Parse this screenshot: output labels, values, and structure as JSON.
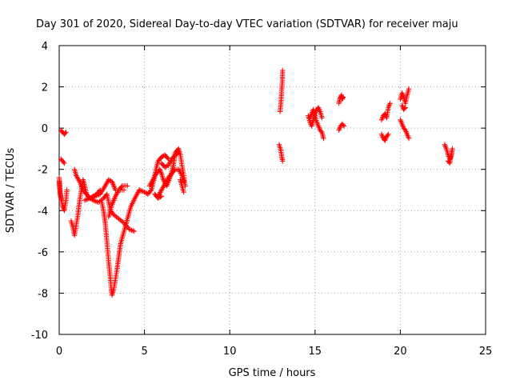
{
  "chart_data": {
    "type": "scatter",
    "title": "Day 301 of 2020, Sidereal Day-to-day VTEC variation (SDTVAR) for receiver maju",
    "xlabel": "GPS time / hours",
    "ylabel": "SDTVAR / TECUs",
    "xlim": [
      0,
      25
    ],
    "ylim": [
      -10,
      4
    ],
    "xticks": [
      0,
      5,
      10,
      15,
      20,
      25
    ],
    "yticks": [
      -10,
      -8,
      -6,
      -4,
      -2,
      0,
      2,
      4
    ],
    "grid": true,
    "marker": "+",
    "series": [
      {
        "name": "SDTVAR",
        "color": "#ff0000",
        "tracks": [
          [
            [
              0.0,
              -2.4
            ],
            [
              0.05,
              -3.0
            ],
            [
              0.1,
              -3.4
            ],
            [
              0.2,
              -3.8
            ],
            [
              0.3,
              -4.0
            ],
            [
              0.4,
              -3.5
            ],
            [
              0.45,
              -3.0
            ]
          ],
          [
            [
              0.0,
              -2.6
            ],
            [
              0.05,
              -3.2
            ],
            [
              0.15,
              -3.5
            ]
          ],
          [
            [
              0.1,
              -0.1
            ],
            [
              0.2,
              -0.2
            ],
            [
              0.3,
              -0.3
            ],
            [
              0.4,
              -0.2
            ]
          ],
          [
            [
              0.1,
              -1.5
            ],
            [
              0.2,
              -1.6
            ],
            [
              0.3,
              -1.7
            ]
          ],
          [
            [
              0.7,
              -4.5
            ],
            [
              0.8,
              -4.8
            ],
            [
              0.9,
              -5.2
            ],
            [
              1.0,
              -4.7
            ],
            [
              1.1,
              -4.2
            ],
            [
              1.2,
              -3.5
            ],
            [
              1.3,
              -3.0
            ],
            [
              1.4,
              -2.5
            ],
            [
              1.5,
              -2.8
            ],
            [
              1.6,
              -3.2
            ],
            [
              1.8,
              -3.4
            ],
            [
              2.0,
              -3.5
            ],
            [
              2.3,
              -3.6
            ],
            [
              2.6,
              -3.4
            ],
            [
              2.8,
              -3.2
            ],
            [
              3.0,
              -4.0
            ],
            [
              3.2,
              -4.2
            ],
            [
              3.5,
              -4.4
            ],
            [
              3.8,
              -4.6
            ],
            [
              4.1,
              -4.9
            ],
            [
              4.4,
              -5.0
            ]
          ],
          [
            [
              0.9,
              -2.0
            ],
            [
              1.0,
              -2.3
            ],
            [
              1.2,
              -2.6
            ],
            [
              1.4,
              -3.0
            ],
            [
              1.6,
              -3.2
            ],
            [
              1.8,
              -3.4
            ],
            [
              2.0,
              -3.3
            ],
            [
              2.2,
              -3.2
            ],
            [
              2.4,
              -3.0
            ]
          ],
          [
            [
              1.5,
              -3.5
            ],
            [
              1.8,
              -3.4
            ],
            [
              2.1,
              -3.3
            ],
            [
              2.4,
              -3.2
            ],
            [
              2.7,
              -2.8
            ],
            [
              2.9,
              -2.5
            ],
            [
              3.1,
              -2.6
            ],
            [
              3.3,
              -3.0
            ]
          ],
          [
            [
              2.5,
              -3.6
            ],
            [
              2.6,
              -4.0
            ],
            [
              2.7,
              -4.6
            ],
            [
              2.8,
              -5.5
            ],
            [
              2.9,
              -6.5
            ],
            [
              3.0,
              -7.3
            ],
            [
              3.05,
              -7.8
            ],
            [
              3.1,
              -8.1
            ],
            [
              3.2,
              -7.8
            ],
            [
              3.3,
              -7.3
            ],
            [
              3.4,
              -6.8
            ],
            [
              3.5,
              -6.2
            ],
            [
              3.6,
              -5.6
            ],
            [
              3.8,
              -5.0
            ],
            [
              4.0,
              -4.4
            ],
            [
              4.2,
              -3.8
            ],
            [
              4.5,
              -3.3
            ],
            [
              4.7,
              -3.0
            ]
          ],
          [
            [
              2.9,
              -4.3
            ],
            [
              3.0,
              -4.0
            ],
            [
              3.1,
              -3.7
            ],
            [
              3.3,
              -3.3
            ],
            [
              3.5,
              -3.0
            ],
            [
              3.8,
              -3.0
            ]
          ],
          [
            [
              3.5,
              -3.0
            ],
            [
              3.7,
              -2.8
            ],
            [
              4.0,
              -2.8
            ]
          ],
          [
            [
              4.7,
              -3.0
            ],
            [
              5.0,
              -3.1
            ],
            [
              5.2,
              -3.2
            ],
            [
              5.4,
              -3.0
            ],
            [
              5.5,
              -2.7
            ],
            [
              5.6,
              -2.3
            ],
            [
              5.7,
              -1.9
            ],
            [
              5.8,
              -1.6
            ],
            [
              6.0,
              -1.4
            ],
            [
              6.2,
              -1.3
            ],
            [
              6.4,
              -1.5
            ]
          ],
          [
            [
              5.3,
              -2.8
            ],
            [
              5.5,
              -2.5
            ],
            [
              5.7,
              -2.2
            ],
            [
              5.9,
              -2.0
            ],
            [
              6.0,
              -2.2
            ],
            [
              6.1,
              -2.5
            ],
            [
              6.3,
              -2.8
            ],
            [
              6.5,
              -2.4
            ],
            [
              6.7,
              -1.8
            ],
            [
              6.8,
              -1.2
            ],
            [
              7.0,
              -1.0
            ],
            [
              7.1,
              -1.3
            ],
            [
              7.2,
              -1.8
            ],
            [
              7.3,
              -2.3
            ],
            [
              7.4,
              -2.8
            ]
          ],
          [
            [
              5.8,
              -3.3
            ],
            [
              6.0,
              -3.0
            ],
            [
              6.2,
              -2.7
            ],
            [
              6.4,
              -2.4
            ],
            [
              6.6,
              -2.2
            ],
            [
              6.8,
              -2.0
            ],
            [
              7.0,
              -2.0
            ],
            [
              7.2,
              -2.3
            ],
            [
              7.3,
              -2.6
            ]
          ],
          [
            [
              6.0,
              -1.7
            ],
            [
              6.2,
              -1.9
            ],
            [
              6.4,
              -1.8
            ],
            [
              6.6,
              -1.5
            ],
            [
              6.8,
              -1.3
            ],
            [
              7.0,
              -1.2
            ]
          ],
          [
            [
              5.6,
              -3.2
            ],
            [
              5.8,
              -3.4
            ],
            [
              6.0,
              -3.3
            ]
          ],
          [
            [
              7.1,
              -2.5
            ],
            [
              7.2,
              -2.8
            ],
            [
              7.3,
              -3.1
            ]
          ],
          [
            [
              12.95,
              0.8
            ],
            [
              13.0,
              1.2
            ],
            [
              13.02,
              1.5
            ],
            [
              13.05,
              1.9
            ],
            [
              13.08,
              2.3
            ],
            [
              13.1,
              2.8
            ]
          ],
          [
            [
              12.9,
              -0.8
            ],
            [
              13.0,
              -1.1
            ],
            [
              13.05,
              -1.4
            ],
            [
              13.1,
              -1.6
            ]
          ],
          [
            [
              14.6,
              0.6
            ],
            [
              14.7,
              0.3
            ],
            [
              14.8,
              0.1
            ],
            [
              14.9,
              0.4
            ],
            [
              15.0,
              0.7
            ],
            [
              15.1,
              0.9
            ],
            [
              15.2,
              1.0
            ],
            [
              15.3,
              0.8
            ],
            [
              15.4,
              0.5
            ]
          ],
          [
            [
              14.7,
              0.5
            ],
            [
              14.8,
              0.7
            ],
            [
              14.9,
              0.9
            ],
            [
              15.0,
              0.6
            ],
            [
              15.1,
              0.3
            ],
            [
              15.2,
              0.1
            ],
            [
              15.3,
              -0.1
            ],
            [
              15.4,
              -0.2
            ],
            [
              15.5,
              -0.5
            ]
          ],
          [
            [
              16.4,
              -0.1
            ],
            [
              16.5,
              0.1
            ],
            [
              16.6,
              0.2
            ],
            [
              16.7,
              0.1
            ]
          ],
          [
            [
              16.4,
              1.2
            ],
            [
              16.45,
              1.4
            ],
            [
              16.5,
              1.5
            ],
            [
              16.55,
              1.6
            ],
            [
              16.6,
              1.4
            ],
            [
              16.65,
              1.5
            ]
          ],
          [
            [
              18.9,
              0.4
            ],
            [
              19.0,
              0.6
            ],
            [
              19.1,
              0.7
            ],
            [
              19.2,
              0.5
            ],
            [
              19.3,
              1.0
            ],
            [
              19.4,
              1.2
            ]
          ],
          [
            [
              18.9,
              -0.3
            ],
            [
              19.0,
              -0.5
            ],
            [
              19.1,
              -0.6
            ],
            [
              19.2,
              -0.4
            ],
            [
              19.3,
              -0.3
            ]
          ],
          [
            [
              20.0,
              1.4
            ],
            [
              20.1,
              1.7
            ],
            [
              20.2,
              1.5
            ],
            [
              20.3,
              1.2
            ],
            [
              20.4,
              1.6
            ],
            [
              20.5,
              1.9
            ]
          ],
          [
            [
              20.0,
              0.4
            ],
            [
              20.1,
              0.2
            ],
            [
              20.2,
              0.0
            ],
            [
              20.3,
              -0.1
            ],
            [
              20.4,
              -0.3
            ],
            [
              20.5,
              -0.5
            ]
          ],
          [
            [
              20.1,
              1.1
            ],
            [
              20.2,
              0.9
            ],
            [
              20.3,
              1.0
            ]
          ],
          [
            [
              22.6,
              -0.8
            ],
            [
              22.7,
              -1.0
            ],
            [
              22.8,
              -1.3
            ],
            [
              22.9,
              -1.5
            ],
            [
              23.0,
              -1.3
            ],
            [
              23.05,
              -1.0
            ],
            [
              22.9,
              -1.7
            ],
            [
              22.8,
              -1.6
            ]
          ]
        ]
      }
    ]
  }
}
